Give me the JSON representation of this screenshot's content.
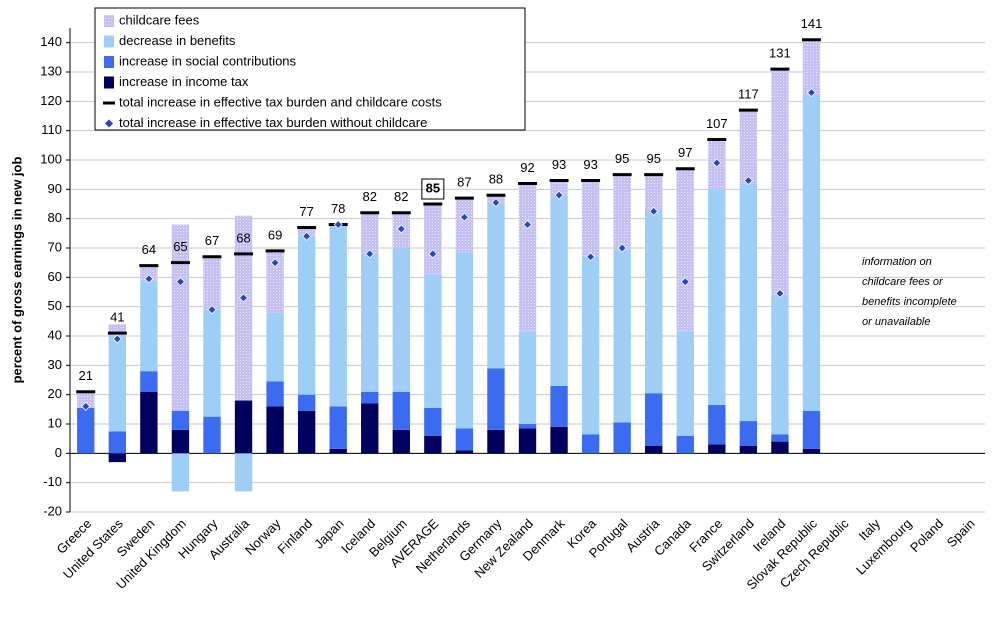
{
  "chart_data": {
    "type": "bar",
    "y_axis_label": "percent of gross earnings in new job",
    "categories": [
      "Greece",
      "United States",
      "Sweden",
      "United Kingdom",
      "Hungary",
      "Australia",
      "Norway",
      "Finland",
      "Japan",
      "Iceland",
      "Belgium",
      "AVERAGE",
      "Netherlands",
      "Germany",
      "New Zealand",
      "Denmark",
      "Korea",
      "Portugal",
      "Austria",
      "Canada",
      "France",
      "Switzerland",
      "Ireland",
      "Slovak Republic",
      "Czech Republic",
      "Italy",
      "Luxembourg",
      "Poland",
      "Spain"
    ],
    "highlight_index": 11,
    "series": [
      {
        "name": "childcare fees",
        "color": "#c4c0f2",
        "marker": "bar",
        "values": [
          5.5,
          4,
          5,
          63.5,
          18,
          63,
          21,
          3,
          0.5,
          14,
          12,
          24,
          18.5,
          3,
          50.5,
          5,
          26,
          25.5,
          12,
          55.5,
          17,
          25,
          77,
          19,
          null,
          null,
          null,
          null,
          null
        ]
      },
      {
        "name": "decrease in benefits",
        "color": "#9ecdf6",
        "marker": "bar",
        "values": [
          0,
          32.5,
          31,
          -13,
          36.5,
          -13,
          23.5,
          54,
          61.5,
          47,
          49,
          45.5,
          60,
          56,
          31.5,
          65,
          60.5,
          59,
          62.5,
          35.5,
          73.5,
          81,
          47.5,
          107.5,
          null,
          null,
          null,
          null,
          null
        ]
      },
      {
        "name": "increase in social contributions",
        "color": "#3b6cf0",
        "marker": "bar",
        "values": [
          15.5,
          7.5,
          7,
          6.5,
          12.5,
          0,
          8.5,
          5.5,
          14.5,
          4,
          13,
          9.5,
          7.5,
          21,
          1.5,
          14,
          6.5,
          10.5,
          18,
          6,
          13.5,
          8.5,
          2.5,
          13,
          null,
          null,
          null,
          null,
          null
        ]
      },
      {
        "name": "increase in income tax",
        "color": "#00005e",
        "marker": "bar",
        "values": [
          0,
          -3,
          21,
          8,
          0,
          18,
          16,
          14.5,
          1.5,
          17,
          8,
          6,
          1,
          8,
          8.5,
          9,
          0,
          0,
          2.5,
          0,
          3,
          2.5,
          4,
          1.5,
          null,
          null,
          null,
          null,
          null
        ]
      },
      {
        "name": "total increase in effective tax burden and childcare costs",
        "color": "#000000",
        "marker": "dash",
        "values": [
          21,
          41,
          64,
          65,
          67,
          68,
          69,
          77,
          78,
          82,
          82,
          85,
          87,
          88,
          92,
          93,
          93,
          95,
          95,
          97,
          107,
          117,
          131,
          141,
          null,
          null,
          null,
          null,
          null
        ]
      },
      {
        "name": "total increase in effective tax burden without childcare",
        "color": "#2446c8",
        "marker": "diamond",
        "values": [
          16,
          39,
          59.5,
          58.5,
          49,
          53,
          65,
          74,
          78,
          68,
          76.5,
          68,
          80.5,
          85.5,
          78,
          88,
          67,
          70,
          82.5,
          58.5,
          99,
          93,
          54.5,
          123,
          null,
          null,
          null,
          null,
          null
        ]
      }
    ],
    "ylim": [
      -20,
      145
    ],
    "yticks": [
      -20,
      -10,
      0,
      10,
      20,
      30,
      40,
      50,
      60,
      70,
      80,
      90,
      100,
      110,
      120,
      130,
      140
    ],
    "grid": true,
    "annotation": [
      "information on",
      "childcare fees or",
      "benefits incomplete",
      "or unavailable"
    ]
  }
}
